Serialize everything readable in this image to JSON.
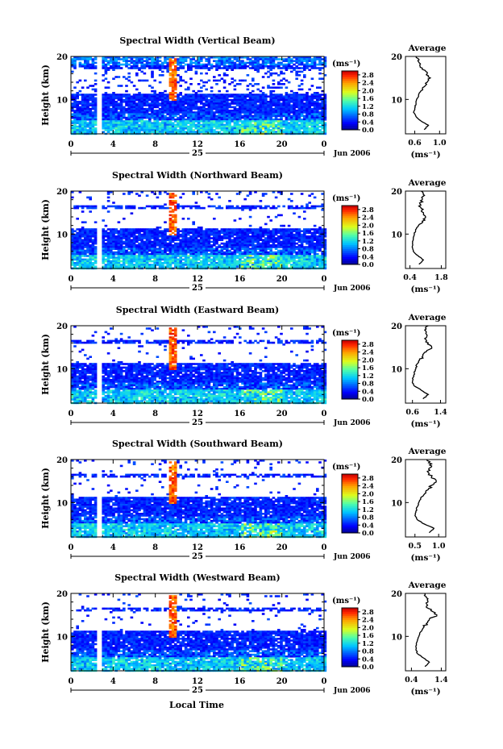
{
  "figure": {
    "xlabel_bottom": "Local Time",
    "ylabel": "Height (km)",
    "date_label": "Jun 2006",
    "day_label": "25",
    "colorbar_unit": "(ms⁻¹)",
    "avg_title": "Average",
    "avg_unit": "(ms⁻¹)"
  },
  "chart_data": [
    {
      "type": "heatmap",
      "title": "Spectral Width (Vertical Beam)",
      "ylabel": "Height (km)",
      "xlim": [
        0,
        24
      ],
      "ylim": [
        2,
        20
      ],
      "xticks": [
        "0",
        "4",
        "8",
        "12",
        "16",
        "20",
        "0"
      ],
      "yticks": [
        "20",
        "10"
      ],
      "colorbar": {
        "ticks": [
          "2.8",
          "2.4",
          "2.0",
          "1.6",
          "1.2",
          "0.8",
          "0.4",
          "0.0"
        ],
        "range": [
          0,
          3.0
        ]
      },
      "features": {
        "data_gap_hour": 2.5,
        "high_width_hour": 9.5,
        "low_cloud_tops_km": 11
      },
      "average_profile": {
        "title": "Average",
        "xticks": [
          "0.6",
          "1.0"
        ],
        "xlim": [
          0.45,
          1.1
        ],
        "heights_km": [
          3,
          4,
          5,
          6,
          7,
          8,
          9,
          10,
          11,
          12,
          13,
          14,
          15,
          16,
          17,
          18,
          19,
          20
        ],
        "values": [
          0.75,
          0.82,
          0.7,
          0.62,
          0.58,
          0.6,
          0.62,
          0.63,
          0.66,
          0.7,
          0.76,
          0.8,
          0.85,
          0.8,
          0.72,
          0.68,
          0.65,
          0.62
        ]
      }
    },
    {
      "type": "heatmap",
      "title": "Spectral Width (Northward Beam)",
      "ylabel": "Height (km)",
      "xlim": [
        0,
        24
      ],
      "ylim": [
        2,
        20
      ],
      "xticks": [
        "0",
        "4",
        "8",
        "12",
        "16",
        "20",
        "0"
      ],
      "yticks": [
        "20",
        "10"
      ],
      "colorbar": {
        "ticks": [
          "2.8",
          "2.4",
          "2.0",
          "1.6",
          "1.2",
          "0.8",
          "0.4",
          "0.0"
        ],
        "range": [
          0,
          3.0
        ]
      },
      "features": {
        "data_gap_hour": 2.5,
        "high_width_hour": 9.5,
        "low_cloud_tops_km": 11
      },
      "average_profile": {
        "title": "Average",
        "xticks": [
          "0.4",
          "1.8"
        ],
        "xlim": [
          0.2,
          2.0
        ],
        "heights_km": [
          3,
          4,
          5,
          6,
          7,
          8,
          9,
          10,
          11,
          12,
          13,
          14,
          15,
          16,
          17,
          18,
          19,
          20
        ],
        "values": [
          0.8,
          1.0,
          0.75,
          0.55,
          0.5,
          0.52,
          0.55,
          0.6,
          0.65,
          0.78,
          0.95,
          1.1,
          1.0,
          0.9,
          0.85,
          0.95,
          1.05,
          0.9
        ]
      }
    },
    {
      "type": "heatmap",
      "title": "Spectral Width (Eastward Beam)",
      "ylabel": "Height (km)",
      "xlim": [
        0,
        24
      ],
      "ylim": [
        2,
        20
      ],
      "xticks": [
        "0",
        "4",
        "8",
        "12",
        "16",
        "20",
        "0"
      ],
      "yticks": [
        "20",
        "10"
      ],
      "colorbar": {
        "ticks": [
          "2.8",
          "2.4",
          "2.0",
          "1.6",
          "1.2",
          "0.8",
          "0.4",
          "0.0"
        ],
        "range": [
          0,
          3.0
        ]
      },
      "features": {
        "data_gap_hour": 2.5,
        "high_width_hour": 9.5,
        "low_cloud_tops_km": 11
      },
      "average_profile": {
        "title": "Average",
        "xticks": [
          "0.6",
          "1.4"
        ],
        "xlim": [
          0.4,
          1.55
        ],
        "heights_km": [
          3,
          4,
          5,
          6,
          7,
          8,
          9,
          10,
          11,
          12,
          13,
          14,
          15,
          16,
          17,
          18,
          19,
          20
        ],
        "values": [
          0.9,
          1.05,
          0.85,
          0.65,
          0.6,
          0.62,
          0.65,
          0.7,
          0.72,
          0.8,
          0.9,
          1.0,
          1.15,
          1.05,
          0.95,
          1.0,
          0.95,
          1.05
        ]
      }
    },
    {
      "type": "heatmap",
      "title": "Spectral Width (Southward Beam)",
      "ylabel": "Height (km)",
      "xlim": [
        0,
        24
      ],
      "ylim": [
        2,
        20
      ],
      "xticks": [
        "0",
        "4",
        "8",
        "12",
        "16",
        "20",
        "0"
      ],
      "yticks": [
        "20",
        "10"
      ],
      "colorbar": {
        "ticks": [
          "2.8",
          "2.4",
          "2.0",
          "1.6",
          "1.2",
          "0.8",
          "0.4",
          "0.0"
        ],
        "range": [
          0,
          3.0
        ]
      },
      "features": {
        "data_gap_hour": 2.5,
        "high_width_hour": 9.5,
        "low_cloud_tops_km": 11
      },
      "average_profile": {
        "title": "Average",
        "xticks": [
          "0.5",
          "1.0"
        ],
        "xlim": [
          0.3,
          1.15
        ],
        "heights_km": [
          3,
          4,
          5,
          6,
          7,
          8,
          9,
          10,
          11,
          12,
          13,
          14,
          15,
          16,
          17,
          18,
          19,
          20
        ],
        "values": [
          0.8,
          0.9,
          0.7,
          0.55,
          0.5,
          0.52,
          0.55,
          0.58,
          0.62,
          0.7,
          0.78,
          0.85,
          0.95,
          0.85,
          0.78,
          0.8,
          0.85,
          0.75
        ]
      }
    },
    {
      "type": "heatmap",
      "title": "Spectral Width (Westward Beam)",
      "ylabel": "Height (km)",
      "xlim": [
        0,
        24
      ],
      "ylim": [
        2,
        20
      ],
      "xticks": [
        "0",
        "4",
        "8",
        "12",
        "16",
        "20",
        "0"
      ],
      "yticks": [
        "20",
        "10"
      ],
      "colorbar": {
        "ticks": [
          "2.8",
          "2.4",
          "2.0",
          "1.6",
          "1.2",
          "0.8",
          "0.4",
          "0.0"
        ],
        "range": [
          0,
          3.0
        ]
      },
      "features": {
        "data_gap_hour": 2.5,
        "high_width_hour": 9.5,
        "low_cloud_tops_km": 11
      },
      "average_profile": {
        "title": "Average",
        "xticks": [
          "0.4",
          "1.4"
        ],
        "xlim": [
          0.2,
          1.55
        ],
        "heights_km": [
          3,
          4,
          5,
          6,
          7,
          8,
          9,
          10,
          11,
          12,
          13,
          14,
          15,
          16,
          17,
          18,
          19,
          20
        ],
        "values": [
          0.85,
          1.0,
          0.8,
          0.6,
          0.55,
          0.57,
          0.6,
          0.65,
          0.7,
          0.8,
          0.9,
          1.0,
          1.25,
          1.05,
          0.9,
          0.95,
          0.9,
          0.85
        ]
      }
    }
  ]
}
